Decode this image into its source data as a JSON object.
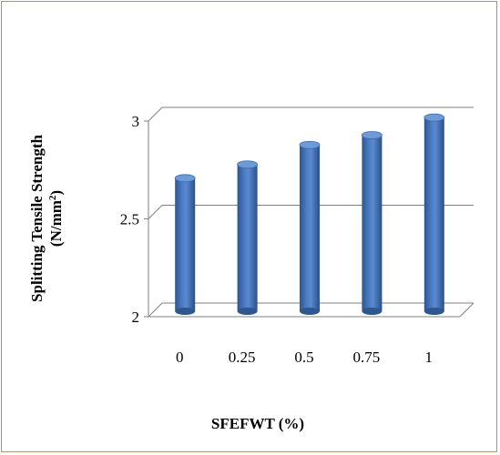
{
  "chart_data": {
    "type": "bar",
    "style": "3d-cylinder",
    "categories": [
      "0",
      "0.25",
      "0.5",
      "0.75",
      "1"
    ],
    "values": [
      2.68,
      2.75,
      2.85,
      2.9,
      2.99
    ],
    "series": [
      {
        "values": [
          2.68,
          2.75,
          2.85,
          2.9,
          2.99
        ]
      }
    ],
    "title": "",
    "xlabel": "SFEFWT (%)",
    "ylabel_line1": "Splitting Tensile Strength",
    "ylabel_line2_prefix": "(N/mm",
    "ylabel_line2_sup": "2",
    "ylabel_line2_suffix": ")",
    "ylim": [
      2,
      3
    ],
    "yticks": [
      "2",
      "2.5",
      "3"
    ],
    "grid": true,
    "legend": "none",
    "bar_color": "#4a7cc4",
    "bar_dark": "#2e568f",
    "bar_top": "#6f9ad8",
    "border_color": "#a09a74"
  }
}
